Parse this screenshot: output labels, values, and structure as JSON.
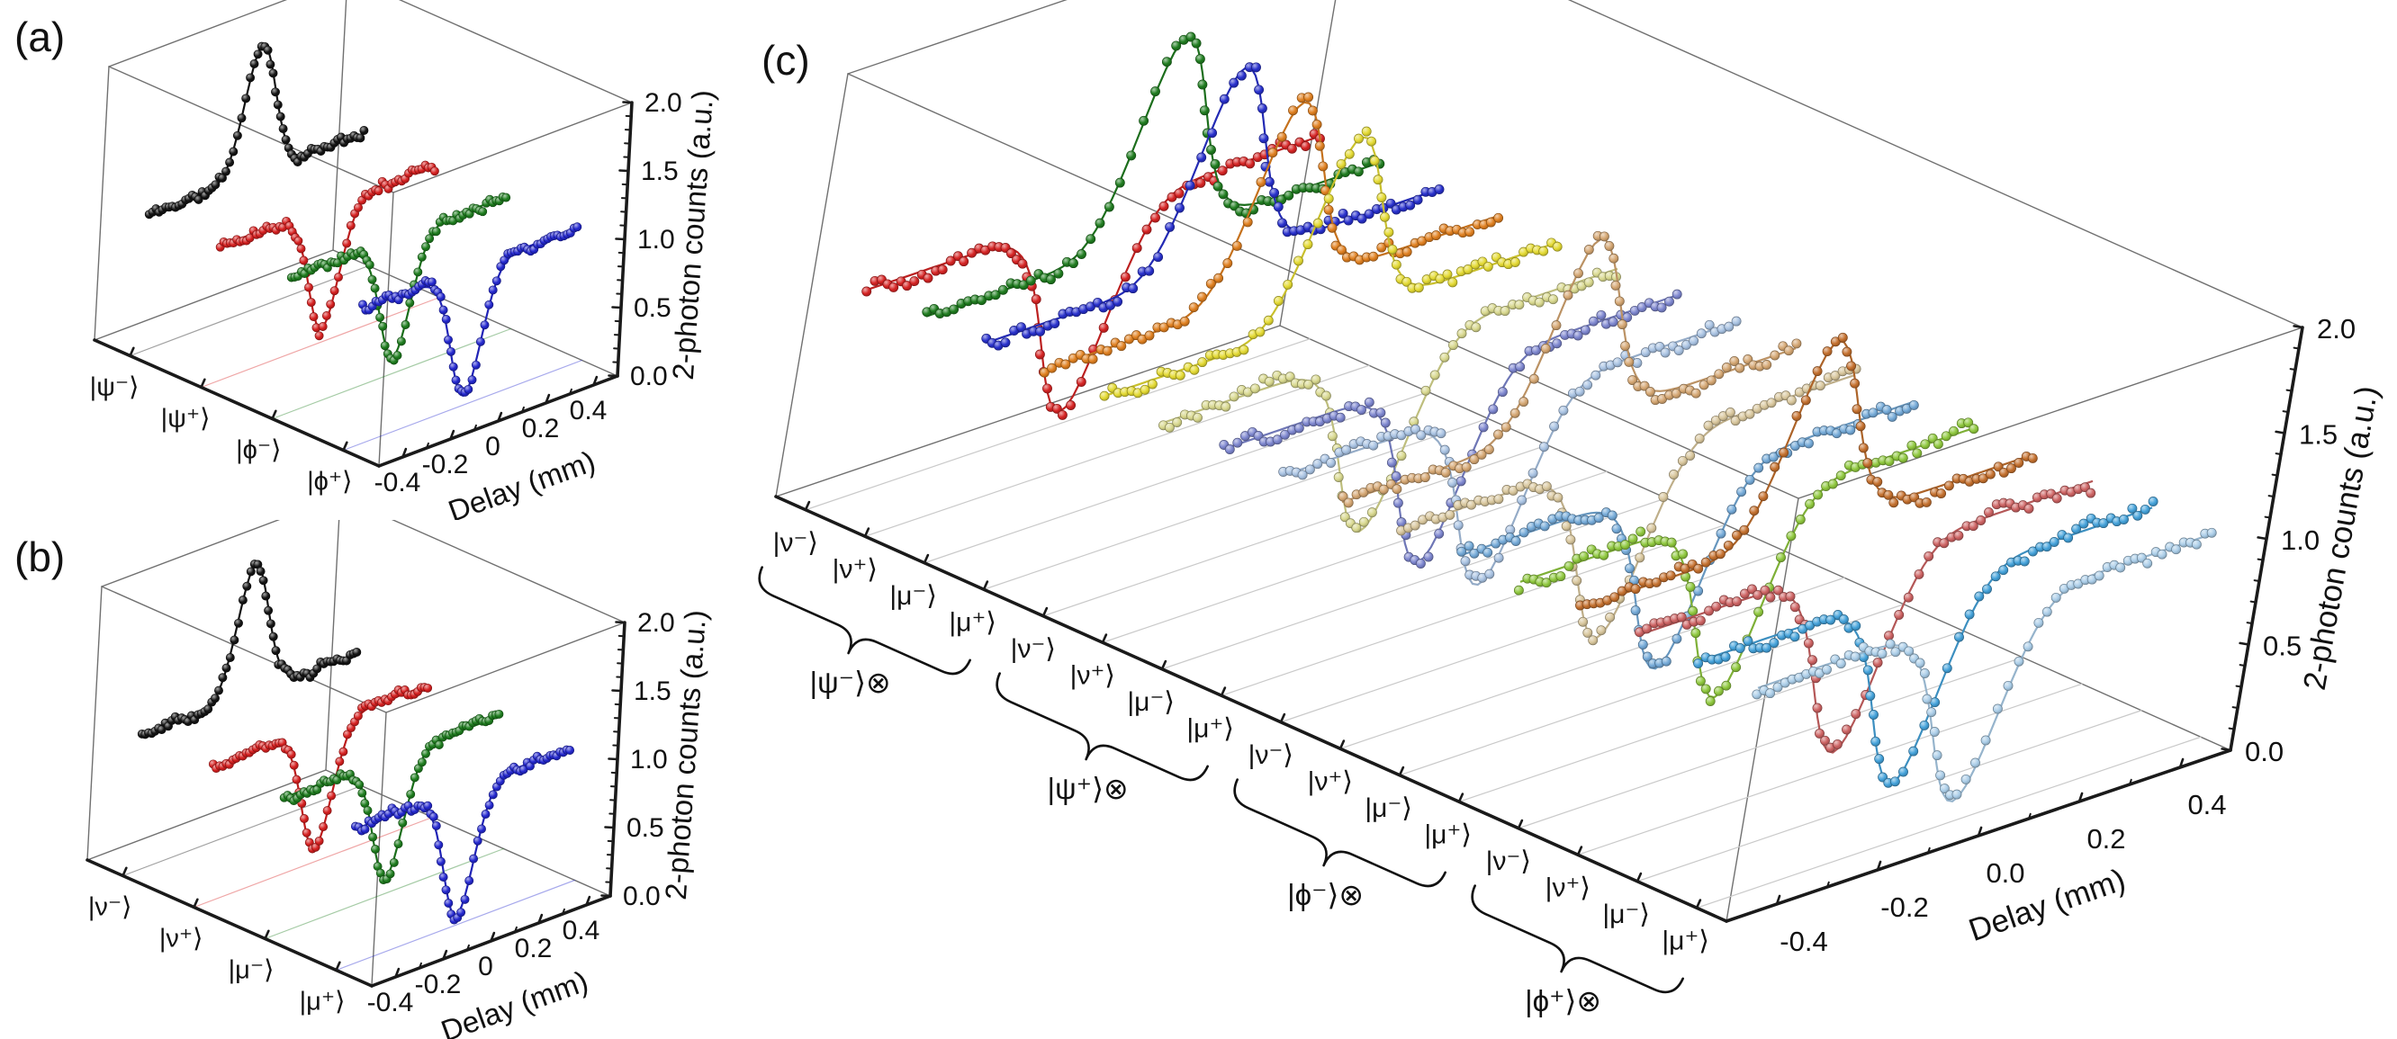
{
  "figure_labels": {
    "a": "(a)",
    "b": "(b)",
    "c": "(c)"
  },
  "chart_data": [
    {
      "id": "a",
      "type": "line",
      "projection": "3d-waterfall",
      "panel_label": "(a)",
      "xlabel": "Delay (mm)",
      "zlabel": "2-photon counts (a.u.)",
      "xlim": [
        -0.5,
        0.5
      ],
      "zlim": [
        0,
        2
      ],
      "x_ticks": [
        -0.4,
        -0.2,
        0,
        0.2,
        0.4
      ],
      "x_tick_labels": [
        "-0.4",
        "-0.2",
        "0",
        "0.2",
        "0.4"
      ],
      "x_minor_step": 0.1,
      "z_ticks": [
        0,
        0.5,
        1,
        1.5,
        2
      ],
      "z_tick_labels": [
        "0.0",
        "0.5",
        "1.0",
        "1.5",
        "2.0"
      ],
      "z_minor_step": 0.1,
      "baseline": 1.0,
      "hom_half_width_mm": 0.09,
      "n_points_per_series": 66,
      "marker": "sphere",
      "series": [
        {
          "state": "|ψ⁻⟩",
          "color": "#141414",
          "shape": "peak",
          "extremum": 1.95
        },
        {
          "state": "|ψ⁺⟩",
          "color": "#d62020",
          "shape": "dip",
          "extremum": 0.1
        },
        {
          "state": "|ϕ⁻⟩",
          "color": "#1e7d1e",
          "shape": "dip",
          "extremum": 0.12
        },
        {
          "state": "|ϕ⁺⟩",
          "color": "#2428cf",
          "shape": "dip",
          "extremum": 0.07
        }
      ]
    },
    {
      "id": "b",
      "type": "line",
      "projection": "3d-waterfall",
      "panel_label": "(b)",
      "xlabel": "Delay (mm)",
      "zlabel": "2-photon counts (a.u.)",
      "xlim": [
        -0.5,
        0.5
      ],
      "zlim": [
        0,
        2
      ],
      "x_ticks": [
        -0.4,
        -0.2,
        0,
        0.2,
        0.4
      ],
      "x_tick_labels": [
        "-0.4",
        "-0.2",
        "0",
        "0.2",
        "0.4"
      ],
      "x_minor_step": 0.1,
      "z_ticks": [
        0,
        0.5,
        1,
        1.5,
        2
      ],
      "z_tick_labels": [
        "0.0",
        "0.5",
        "1.0",
        "1.5",
        "2.0"
      ],
      "z_minor_step": 0.1,
      "baseline": 1.0,
      "hom_half_width_mm": 0.09,
      "n_points_per_series": 66,
      "marker": "sphere",
      "series": [
        {
          "state": "|ν⁻⟩",
          "color": "#141414",
          "shape": "peak",
          "extremum": 1.95
        },
        {
          "state": "|ν⁺⟩",
          "color": "#d62020",
          "shape": "dip",
          "extremum": 0.1
        },
        {
          "state": "|μ⁻⟩",
          "color": "#1e7d1e",
          "shape": "dip",
          "extremum": 0.12
        },
        {
          "state": "|μ⁺⟩",
          "color": "#2428cf",
          "shape": "dip",
          "extremum": 0.07
        }
      ]
    },
    {
      "id": "c",
      "type": "line",
      "projection": "3d-waterfall",
      "panel_label": "(c)",
      "xlabel": "Delay (mm)",
      "zlabel": "2-photon counts (a.u.)",
      "xlim": [
        -0.5,
        0.5
      ],
      "zlim": [
        0,
        2
      ],
      "x_ticks": [
        -0.4,
        -0.2,
        0,
        0.2,
        0.4
      ],
      "x_tick_labels": [
        "-0.4",
        "-0.2",
        "0.0",
        "0.2",
        "0.4"
      ],
      "x_minor_step": 0.1,
      "z_ticks": [
        0,
        0.5,
        1,
        1.5,
        2
      ],
      "z_tick_labels": [
        "0.0",
        "0.5",
        "1.0",
        "1.5",
        "2.0"
      ],
      "z_minor_step": 0.1,
      "baseline": 1.0,
      "hom_half_width_mm": 0.09,
      "n_points_per_series": 66,
      "marker": "sphere",
      "groups": [
        {
          "label": "|ψ⁻⟩⊗"
        },
        {
          "label": "|ψ⁺⟩⊗"
        },
        {
          "label": "|ϕ⁻⟩⊗"
        },
        {
          "label": "|ϕ⁺⟩⊗"
        }
      ],
      "series": [
        {
          "group": "|ψ⁻⟩⊗",
          "state": "|ν⁻⟩",
          "color": "#d62424",
          "shape": "dip",
          "extremum": 0.06
        },
        {
          "group": "|ψ⁻⟩⊗",
          "state": "|ν⁺⟩",
          "color": "#207d20",
          "shape": "peak",
          "extremum": 1.96
        },
        {
          "group": "|ψ⁻⟩⊗",
          "state": "|μ⁻⟩",
          "color": "#2830cc",
          "shape": "peak",
          "extremum": 1.94
        },
        {
          "group": "|ψ⁻⟩⊗",
          "state": "|μ⁺⟩",
          "color": "#e08020",
          "shape": "peak",
          "extremum": 1.9
        },
        {
          "group": "|ψ⁺⟩⊗",
          "state": "|ν⁻⟩",
          "color": "#e4da33",
          "shape": "peak",
          "extremum": 1.86
        },
        {
          "group": "|ψ⁺⟩⊗",
          "state": "|ν⁺⟩",
          "color": "#d8d88e",
          "shape": "dip",
          "extremum": 0.12
        },
        {
          "group": "|ψ⁺⟩⊗",
          "state": "|μ⁻⟩",
          "color": "#7d86cf",
          "shape": "dip",
          "extremum": 0.1
        },
        {
          "group": "|ψ⁺⟩⊗",
          "state": "|μ⁺⟩",
          "color": "#a8c2e2",
          "shape": "dip",
          "extremum": 0.12
        },
        {
          "group": "|ϕ⁻⟩⊗",
          "state": "|ν⁻⟩",
          "color": "#d4a672",
          "shape": "peak",
          "extremum": 1.88
        },
        {
          "group": "|ϕ⁻⟩⊗",
          "state": "|ν⁺⟩",
          "color": "#d8c69c",
          "shape": "dip",
          "extremum": 0.12
        },
        {
          "group": "|ϕ⁻⟩⊗",
          "state": "|μ⁻⟩",
          "color": "#74aad8",
          "shape": "dip",
          "extremum": 0.1
        },
        {
          "group": "|ϕ⁻⟩⊗",
          "state": "|μ⁺⟩",
          "color": "#8fc83e",
          "shape": "dip",
          "extremum": 0.09
        },
        {
          "group": "|ϕ⁺⟩⊗",
          "state": "|ν⁻⟩",
          "color": "#c4702e",
          "shape": "peak",
          "extremum": 1.9
        },
        {
          "group": "|ϕ⁺⟩⊗",
          "state": "|ν⁺⟩",
          "color": "#cd6363",
          "shape": "dip",
          "extremum": 0.08
        },
        {
          "group": "|ϕ⁺⟩⊗",
          "state": "|μ⁻⟩",
          "color": "#44a2da",
          "shape": "dip",
          "extremum": 0.06
        },
        {
          "group": "|ϕ⁺⟩⊗",
          "state": "|μ⁺⟩",
          "color": "#aacde8",
          "shape": "dip",
          "extremum": 0.1
        }
      ]
    }
  ]
}
